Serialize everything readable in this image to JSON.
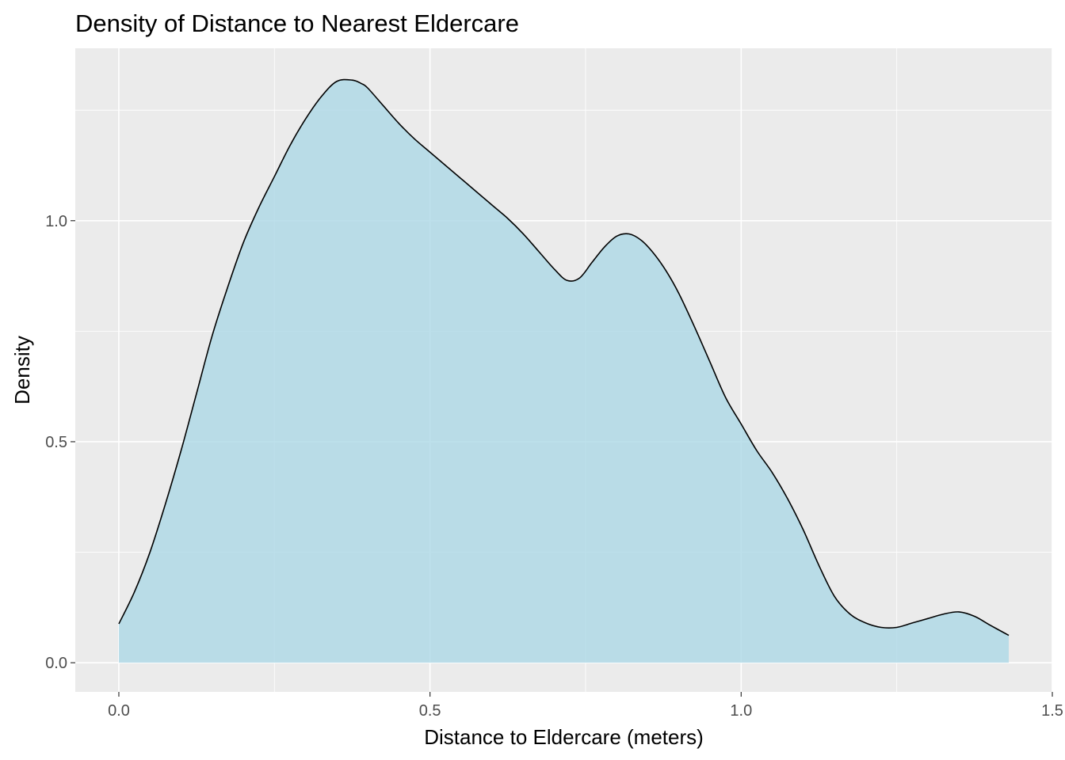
{
  "chart_data": {
    "type": "area",
    "title": "Density of Distance to Nearest Eldercare",
    "xlabel": "Distance to Eldercare (meters)",
    "ylabel": "Density",
    "xlim": [
      -0.07,
      1.5
    ],
    "ylim": [
      -0.066,
      1.39
    ],
    "x_ticks": [
      0.0,
      0.5,
      1.0,
      1.5
    ],
    "x_tick_labels": [
      "0.0",
      "0.5",
      "1.0",
      "1.5"
    ],
    "y_ticks": [
      0.0,
      0.5,
      1.0
    ],
    "y_tick_labels": [
      "0.0",
      "0.5",
      "1.0"
    ],
    "grid": true,
    "fill_color": "#add8e6",
    "fill_opacity": 0.8,
    "line_color": "#000000",
    "panel_color": "#ebebeb",
    "x": [
      0.0,
      0.025,
      0.05,
      0.075,
      0.1,
      0.125,
      0.15,
      0.175,
      0.2,
      0.225,
      0.25,
      0.275,
      0.3,
      0.325,
      0.35,
      0.375,
      0.39,
      0.4,
      0.425,
      0.45,
      0.475,
      0.5,
      0.525,
      0.55,
      0.575,
      0.6,
      0.625,
      0.65,
      0.675,
      0.7,
      0.72,
      0.74,
      0.76,
      0.78,
      0.8,
      0.82,
      0.84,
      0.86,
      0.88,
      0.9,
      0.925,
      0.95,
      0.975,
      1.0,
      1.025,
      1.05,
      1.075,
      1.1,
      1.125,
      1.15,
      1.175,
      1.2,
      1.225,
      1.25,
      1.275,
      1.3,
      1.325,
      1.35,
      1.375,
      1.4,
      1.43
    ],
    "y": [
      0.088,
      0.16,
      0.25,
      0.36,
      0.48,
      0.61,
      0.74,
      0.85,
      0.95,
      1.03,
      1.1,
      1.17,
      1.23,
      1.28,
      1.315,
      1.318,
      1.31,
      1.3,
      1.26,
      1.22,
      1.185,
      1.155,
      1.125,
      1.095,
      1.065,
      1.035,
      1.005,
      0.97,
      0.93,
      0.89,
      0.865,
      0.87,
      0.905,
      0.94,
      0.965,
      0.97,
      0.955,
      0.925,
      0.885,
      0.835,
      0.76,
      0.68,
      0.6,
      0.54,
      0.48,
      0.43,
      0.37,
      0.3,
      0.22,
      0.15,
      0.11,
      0.09,
      0.08,
      0.08,
      0.09,
      0.1,
      0.11,
      0.115,
      0.105,
      0.085,
      0.062
    ]
  }
}
